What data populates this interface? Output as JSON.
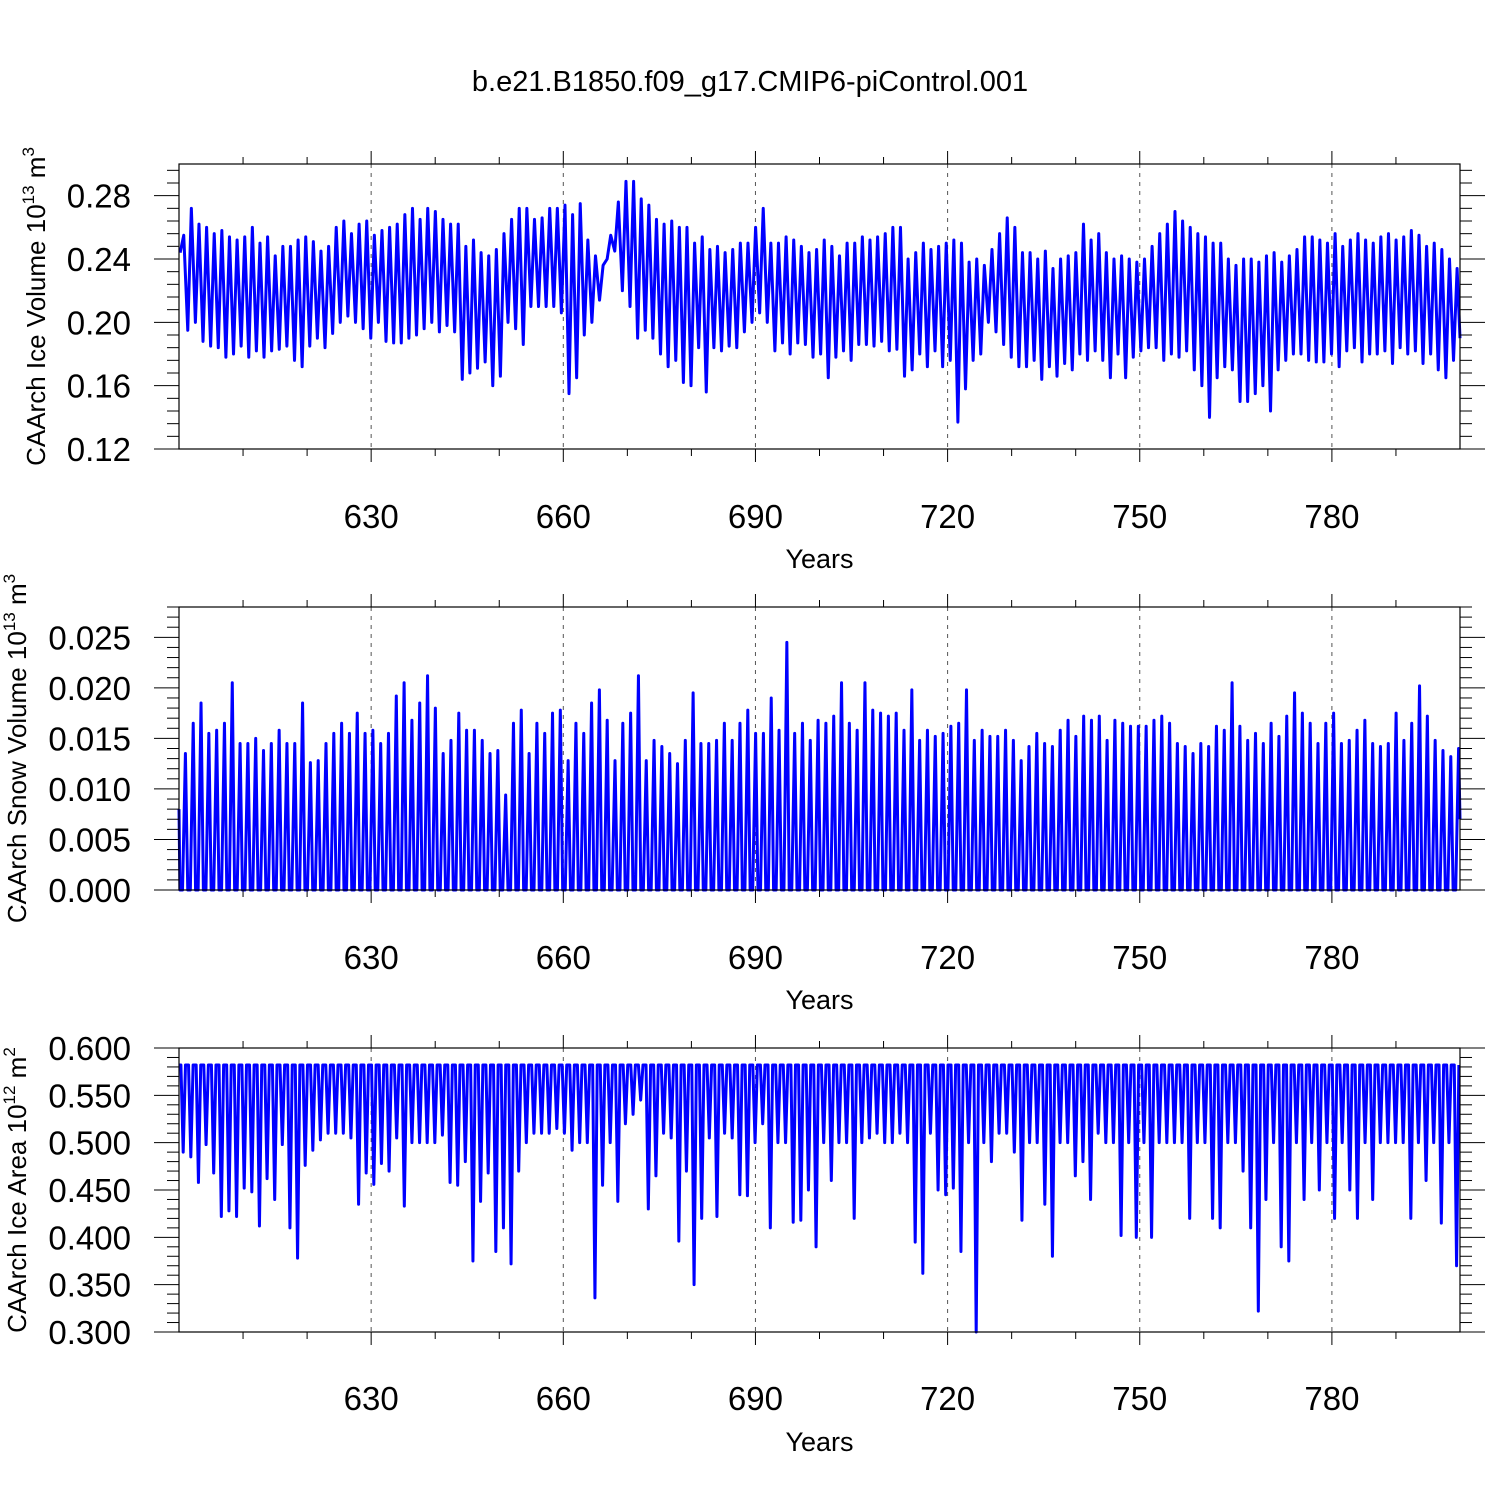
{
  "title": "b.e21.B1850.f09_g17.CMIP6-piControl.001",
  "colors": {
    "series": "#0000ff",
    "axes": "#000000",
    "grid": "#555555"
  },
  "chart_data": [
    {
      "type": "line",
      "xlabel": "Years",
      "ylabel": {
        "main": "CAArch Ice Volume 10",
        "exp": "13",
        "unit": " m",
        "unit_exp": "3"
      },
      "xlim": [
        600,
        800
      ],
      "ylim": [
        0.12,
        0.3
      ],
      "xticks": [
        "630",
        "660",
        "690",
        "720",
        "750",
        "780"
      ],
      "yticks": [
        "0.12",
        "0.16",
        "0.20",
        "0.24",
        "0.28"
      ],
      "grid": "vertical dashed at major x ticks",
      "year_range": [
        600,
        800
      ],
      "peaks": [
        0.255,
        0.272,
        0.262,
        0.26,
        0.256,
        0.258,
        0.254,
        0.252,
        0.254,
        0.26,
        0.25,
        0.254,
        0.242,
        0.248,
        0.248,
        0.252,
        0.254,
        0.251,
        0.245,
        0.248,
        0.26,
        0.264,
        0.256,
        0.262,
        0.264,
        0.255,
        0.258,
        0.26,
        0.262,
        0.268,
        0.272,
        0.265,
        0.272,
        0.27,
        0.265,
        0.262,
        0.262,
        0.248,
        0.252,
        0.244,
        0.242,
        0.246,
        0.256,
        0.265,
        0.272,
        0.272,
        0.265,
        0.266,
        0.272,
        0.272,
        0.274,
        0.268,
        0.275,
        0.252,
        0.242,
        0.236,
        0.255,
        0.276,
        0.289,
        0.289,
        0.278,
        0.274,
        0.265,
        0.262,
        0.264,
        0.26,
        0.26,
        0.25,
        0.254,
        0.246,
        0.248,
        0.244,
        0.246,
        0.25,
        0.25,
        0.26,
        0.272,
        0.25,
        0.25,
        0.254,
        0.252,
        0.248,
        0.244,
        0.246,
        0.252,
        0.248,
        0.242,
        0.25,
        0.25,
        0.254,
        0.252,
        0.254,
        0.256,
        0.26,
        0.26,
        0.24,
        0.244,
        0.25,
        0.246,
        0.248,
        0.25,
        0.252,
        0.25,
        0.238,
        0.24,
        0.236,
        0.246,
        0.256,
        0.266,
        0.26,
        0.244,
        0.244,
        0.24,
        0.245,
        0.234,
        0.24,
        0.242,
        0.244,
        0.262,
        0.252,
        0.256,
        0.244,
        0.24,
        0.242,
        0.24,
        0.238,
        0.24,
        0.248,
        0.256,
        0.262,
        0.27,
        0.264,
        0.26,
        0.256,
        0.254,
        0.25,
        0.25,
        0.24,
        0.236,
        0.24,
        0.24,
        0.238,
        0.242,
        0.244,
        0.238,
        0.242,
        0.246,
        0.254,
        0.254,
        0.252,
        0.25,
        0.256,
        0.248,
        0.252,
        0.256,
        0.252,
        0.25,
        0.254,
        0.256,
        0.252,
        0.254,
        0.258,
        0.255,
        0.248,
        0.25,
        0.246,
        0.24,
        0.234
      ],
      "troughs": [
        0.244,
        0.195,
        0.2,
        0.188,
        0.185,
        0.184,
        0.178,
        0.18,
        0.185,
        0.178,
        0.182,
        0.178,
        0.182,
        0.183,
        0.185,
        0.176,
        0.172,
        0.185,
        0.19,
        0.184,
        0.193,
        0.2,
        0.204,
        0.2,
        0.196,
        0.19,
        0.2,
        0.188,
        0.187,
        0.187,
        0.19,
        0.192,
        0.196,
        0.2,
        0.194,
        0.198,
        0.194,
        0.164,
        0.168,
        0.171,
        0.175,
        0.16,
        0.166,
        0.2,
        0.196,
        0.186,
        0.21,
        0.21,
        0.21,
        0.21,
        0.206,
        0.155,
        0.165,
        0.192,
        0.2,
        0.214,
        0.24,
        0.245,
        0.22,
        0.21,
        0.19,
        0.195,
        0.19,
        0.18,
        0.172,
        0.176,
        0.162,
        0.16,
        0.184,
        0.156,
        0.184,
        0.182,
        0.185,
        0.184,
        0.194,
        0.2,
        0.206,
        0.2,
        0.182,
        0.187,
        0.18,
        0.187,
        0.186,
        0.178,
        0.18,
        0.165,
        0.178,
        0.182,
        0.176,
        0.186,
        0.186,
        0.185,
        0.188,
        0.182,
        0.183,
        0.166,
        0.17,
        0.18,
        0.172,
        0.182,
        0.172,
        0.176,
        0.137,
        0.158,
        0.176,
        0.18,
        0.2,
        0.194,
        0.186,
        0.178,
        0.172,
        0.172,
        0.176,
        0.164,
        0.172,
        0.166,
        0.174,
        0.17,
        0.18,
        0.176,
        0.182,
        0.176,
        0.165,
        0.18,
        0.165,
        0.178,
        0.182,
        0.184,
        0.184,
        0.176,
        0.18,
        0.178,
        0.182,
        0.17,
        0.16,
        0.14,
        0.165,
        0.172,
        0.17,
        0.15,
        0.15,
        0.155,
        0.16,
        0.144,
        0.17,
        0.176,
        0.18,
        0.18,
        0.176,
        0.175,
        0.175,
        0.18,
        0.172,
        0.182,
        0.184,
        0.175,
        0.18,
        0.18,
        0.182,
        0.174,
        0.184,
        0.18,
        0.182,
        0.174,
        0.18,
        0.17,
        0.165,
        0.176,
        0.19
      ]
    },
    {
      "type": "line",
      "xlabel": "Years",
      "ylabel": {
        "main": "CAArch Snow Volume 10",
        "exp": "13",
        "unit": " m",
        "unit_exp": "3"
      },
      "xlim": [
        600,
        800
      ],
      "ylim": [
        0.0,
        0.028
      ],
      "xticks": [
        "630",
        "660",
        "690",
        "720",
        "750",
        "780"
      ],
      "yticks": [
        "0.000",
        "0.005",
        "0.010",
        "0.015",
        "0.020",
        "0.025"
      ],
      "grid": "vertical dashed at major x ticks",
      "year_range": [
        600,
        800
      ],
      "peaks": [
        0.0135,
        0.0165,
        0.0185,
        0.0155,
        0.0158,
        0.0165,
        0.0205,
        0.0145,
        0.0145,
        0.015,
        0.0138,
        0.0145,
        0.0158,
        0.0145,
        0.0145,
        0.0185,
        0.0126,
        0.0128,
        0.0145,
        0.0155,
        0.0165,
        0.0155,
        0.0175,
        0.0155,
        0.0158,
        0.0145,
        0.0155,
        0.0192,
        0.0205,
        0.0168,
        0.0185,
        0.0212,
        0.018,
        0.0135,
        0.0148,
        0.0175,
        0.0158,
        0.0158,
        0.0148,
        0.0135,
        0.0138,
        0.0094,
        0.0165,
        0.0178,
        0.0135,
        0.0165,
        0.0155,
        0.0175,
        0.0178,
        0.0128,
        0.0165,
        0.0155,
        0.0185,
        0.0198,
        0.0168,
        0.0128,
        0.0165,
        0.0175,
        0.0212,
        0.0128,
        0.0148,
        0.0142,
        0.0135,
        0.0125,
        0.0148,
        0.0195,
        0.0145,
        0.0145,
        0.0148,
        0.0165,
        0.0148,
        0.0165,
        0.0178,
        0.0155,
        0.0155,
        0.019,
        0.0158,
        0.0245,
        0.0155,
        0.0165,
        0.0148,
        0.0168,
        0.0165,
        0.0172,
        0.0205,
        0.0165,
        0.0158,
        0.0205,
        0.0178,
        0.0175,
        0.0172,
        0.0175,
        0.0158,
        0.0198,
        0.0148,
        0.0158,
        0.0152,
        0.0155,
        0.0162,
        0.0165,
        0.0198,
        0.0148,
        0.0158,
        0.0152,
        0.0152,
        0.0158,
        0.0148,
        0.0128,
        0.0142,
        0.0155,
        0.0145,
        0.0142,
        0.0158,
        0.0168,
        0.0152,
        0.0172,
        0.0168,
        0.0172,
        0.0148,
        0.0168,
        0.0165,
        0.0162,
        0.0162,
        0.0162,
        0.0168,
        0.0172,
        0.0165,
        0.0145,
        0.0142,
        0.0135,
        0.0145,
        0.0142,
        0.0162,
        0.0158,
        0.0205,
        0.0162,
        0.0148,
        0.0155,
        0.0145,
        0.0165,
        0.0152,
        0.0172,
        0.0195,
        0.0175,
        0.0165,
        0.0145,
        0.0165,
        0.0175,
        0.0145,
        0.0148,
        0.0158,
        0.0168,
        0.0145,
        0.0142,
        0.0145,
        0.0175,
        0.0148,
        0.0165,
        0.0202,
        0.0172,
        0.0148,
        0.0138,
        0.0132,
        0.014
      ]
    },
    {
      "type": "line",
      "xlabel": "Years",
      "ylabel": {
        "main": "CAArch Ice Area 10",
        "exp": "12",
        "unit": " m",
        "unit_exp": "2"
      },
      "xlim": [
        600,
        800
      ],
      "ylim": [
        0.3,
        0.6
      ],
      "xticks": [
        "630",
        "660",
        "690",
        "720",
        "750",
        "780"
      ],
      "yticks": [
        "0.300",
        "0.350",
        "0.400",
        "0.450",
        "0.500",
        "0.550",
        "0.600"
      ],
      "grid": "vertical dashed at major x ticks",
      "year_range": [
        600,
        800
      ],
      "max_plateau": 0.582,
      "minima": [
        0.49,
        0.485,
        0.458,
        0.498,
        0.468,
        0.422,
        0.428,
        0.422,
        0.452,
        0.448,
        0.412,
        0.462,
        0.44,
        0.498,
        0.41,
        0.378,
        0.476,
        0.492,
        0.503,
        0.51,
        0.51,
        0.51,
        0.505,
        0.435,
        0.468,
        0.456,
        0.478,
        0.47,
        0.505,
        0.433,
        0.5,
        0.5,
        0.5,
        0.5,
        0.508,
        0.458,
        0.455,
        0.48,
        0.375,
        0.438,
        0.468,
        0.385,
        0.41,
        0.372,
        0.47,
        0.5,
        0.51,
        0.51,
        0.51,
        0.515,
        0.51,
        0.492,
        0.5,
        0.5,
        0.336,
        0.455,
        0.5,
        0.438,
        0.52,
        0.53,
        0.545,
        0.43,
        0.465,
        0.51,
        0.505,
        0.396,
        0.47,
        0.35,
        0.42,
        0.505,
        0.422,
        0.51,
        0.505,
        0.445,
        0.444,
        0.5,
        0.52,
        0.41,
        0.5,
        0.5,
        0.416,
        0.418,
        0.45,
        0.39,
        0.5,
        0.46,
        0.5,
        0.5,
        0.42,
        0.5,
        0.505,
        0.51,
        0.5,
        0.5,
        0.51,
        0.5,
        0.395,
        0.362,
        0.51,
        0.45,
        0.445,
        0.452,
        0.385,
        0.5,
        0.3,
        0.5,
        0.48,
        0.51,
        0.51,
        0.49,
        0.418,
        0.5,
        0.5,
        0.435,
        0.38,
        0.5,
        0.5,
        0.465,
        0.48,
        0.44,
        0.51,
        0.5,
        0.5,
        0.402,
        0.5,
        0.4,
        0.5,
        0.4,
        0.5,
        0.5,
        0.5,
        0.5,
        0.42,
        0.5,
        0.5,
        0.42,
        0.41,
        0.5,
        0.5,
        0.47,
        0.41,
        0.322,
        0.44,
        0.5,
        0.39,
        0.375,
        0.5,
        0.44,
        0.5,
        0.45,
        0.5,
        0.42,
        0.5,
        0.45,
        0.42,
        0.5,
        0.44,
        0.5,
        0.5,
        0.5,
        0.5,
        0.42,
        0.5,
        0.46,
        0.5,
        0.415,
        0.5,
        0.37
      ]
    }
  ]
}
